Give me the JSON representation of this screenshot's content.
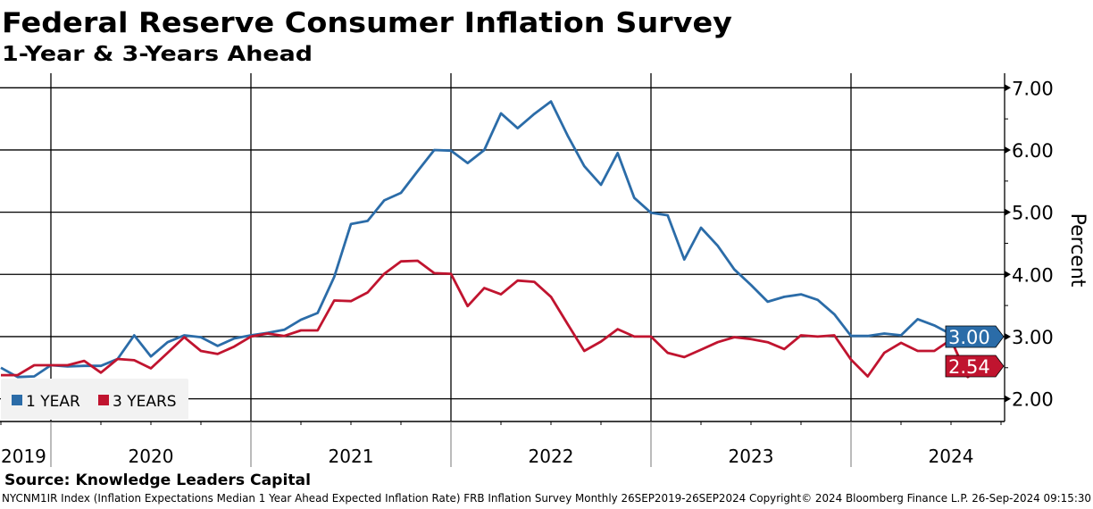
{
  "title": "Federal Reserve Consumer Inflation Survey",
  "subtitle": "1-Year & 3-Years Ahead",
  "source": "Source: Knowledge Leaders Capital",
  "footer": "NYCNM1IR Index (Inflation Expectations Median 1 Year Ahead Expected Inflation Rate) FRB Inflation Survey  Monthly 26SEP2019-26SEP2024  Copyright© 2024 Bloomberg Finance L.P.  26-Sep-2024 09:15:30",
  "colors": {
    "one_year": "#2b6ca8",
    "three_years": "#c0142f",
    "legend_bg": "#f2f2f2"
  },
  "chart_data": {
    "type": "line",
    "ylabel": "Percent",
    "ylim": [
      1.63,
      7.23
    ],
    "yticks": [
      "7.00",
      "6.00",
      "5.00",
      "4.00",
      "3.00",
      "2.00"
    ],
    "ytick_values": [
      7,
      6,
      5,
      4,
      3,
      2
    ],
    "xticks": [
      "2019",
      "2020",
      "2021",
      "2022",
      "2023",
      "2024"
    ],
    "grid": true,
    "legend_placement": "bottom-left",
    "x": [
      "2019-09",
      "2019-10",
      "2019-11",
      "2019-12",
      "2020-01",
      "2020-02",
      "2020-03",
      "2020-04",
      "2020-05",
      "2020-06",
      "2020-07",
      "2020-08",
      "2020-09",
      "2020-10",
      "2020-11",
      "2020-12",
      "2021-01",
      "2021-02",
      "2021-03",
      "2021-04",
      "2021-05",
      "2021-06",
      "2021-07",
      "2021-08",
      "2021-09",
      "2021-10",
      "2021-11",
      "2021-12",
      "2022-01",
      "2022-02",
      "2022-03",
      "2022-04",
      "2022-05",
      "2022-06",
      "2022-07",
      "2022-08",
      "2022-09",
      "2022-10",
      "2022-11",
      "2022-12",
      "2023-01",
      "2023-02",
      "2023-03",
      "2023-04",
      "2023-05",
      "2023-06",
      "2023-07",
      "2023-08",
      "2023-09",
      "2023-10",
      "2023-11",
      "2023-12",
      "2024-01",
      "2024-02",
      "2024-03",
      "2024-04",
      "2024-05",
      "2024-06",
      "2024-07",
      "2024-08"
    ],
    "series": [
      {
        "name": "1 YEAR",
        "last_label": "3.00",
        "values": [
          2.5,
          2.35,
          2.36,
          2.54,
          2.52,
          2.53,
          2.53,
          2.64,
          3.02,
          2.68,
          2.91,
          3.02,
          2.99,
          2.85,
          2.97,
          3.02,
          3.06,
          3.11,
          3.27,
          3.38,
          3.96,
          4.81,
          4.86,
          5.19,
          5.31,
          5.66,
          6.0,
          5.99,
          5.79,
          6.0,
          6.59,
          6.35,
          6.58,
          6.78,
          6.23,
          5.74,
          5.44,
          5.95,
          5.23,
          4.99,
          4.95,
          4.24,
          4.75,
          4.46,
          4.08,
          3.83,
          3.56,
          3.64,
          3.68,
          3.59,
          3.36,
          3.01,
          3.01,
          3.05,
          3.02,
          3.28,
          3.18,
          3.04,
          2.99,
          3.0
        ]
      },
      {
        "name": "3 YEARS",
        "last_label": "2.54",
        "values": [
          2.38,
          2.38,
          2.54,
          2.54,
          2.54,
          2.61,
          2.42,
          2.64,
          2.62,
          2.49,
          2.74,
          2.99,
          2.77,
          2.72,
          2.84,
          3.0,
          3.05,
          3.01,
          3.1,
          3.1,
          3.58,
          3.57,
          3.71,
          4.01,
          4.21,
          4.22,
          4.02,
          4.01,
          3.49,
          3.78,
          3.68,
          3.9,
          3.88,
          3.64,
          3.2,
          2.77,
          2.92,
          3.12,
          3.0,
          3.0,
          2.74,
          2.67,
          2.79,
          2.91,
          2.99,
          2.96,
          2.91,
          2.8,
          3.02,
          3.0,
          3.02,
          2.63,
          2.36,
          2.74,
          2.9,
          2.77,
          2.77,
          2.95,
          2.35,
          2.54
        ]
      }
    ]
  }
}
